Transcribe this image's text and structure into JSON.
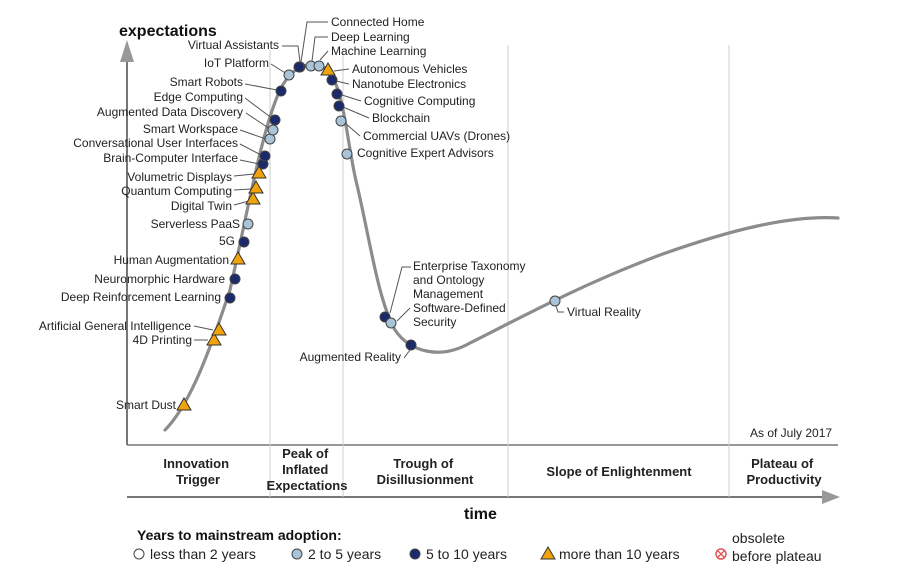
{
  "chart_data": {
    "type": "hype-cycle",
    "title": "",
    "ylabel": "expectations",
    "xlabel": "time",
    "note": "As of July 2017",
    "phases": [
      {
        "lines": [
          "Innovation",
          "Trigger"
        ]
      },
      {
        "lines": [
          "Peak of",
          "Inflated",
          "Expectations"
        ]
      },
      {
        "lines": [
          "Trough of",
          "Disillusionment"
        ]
      },
      {
        "lines": [
          "Slope of Enlightenment"
        ]
      },
      {
        "lines": [
          "Plateau of",
          "Productivity"
        ]
      }
    ],
    "legend": {
      "title": "Years to mainstream adoption:",
      "items": [
        {
          "key": "lt2",
          "label": "less than 2 years",
          "marker": "circle",
          "fill": "#ffffff"
        },
        {
          "key": "2to5",
          "label": "2 to 5 years",
          "marker": "circle",
          "fill": "#a9c4d8"
        },
        {
          "key": "5to10",
          "label": "5 to 10 years",
          "marker": "circle",
          "fill": "#1b2a6b"
        },
        {
          "key": "gt10",
          "label": "more than 10 years",
          "marker": "triangle",
          "fill": "#f0a30a"
        },
        {
          "key": "obs",
          "label_lines": [
            "obsolete",
            "before plateau"
          ],
          "marker": "x-circle",
          "fill": "#e05555"
        }
      ]
    },
    "technologies": [
      {
        "name": "Smart Dust",
        "category": "gt10"
      },
      {
        "name": "4D Printing",
        "category": "gt10"
      },
      {
        "name": "Artificial General Intelligence",
        "category": "gt10"
      },
      {
        "name": "Deep Reinforcement Learning",
        "category": "5to10"
      },
      {
        "name": "Neuromorphic Hardware",
        "category": "5to10"
      },
      {
        "name": "Human Augmentation",
        "category": "gt10"
      },
      {
        "name": "5G",
        "category": "5to10"
      },
      {
        "name": "Serverless PaaS",
        "category": "2to5"
      },
      {
        "name": "Digital Twin",
        "category": "gt10"
      },
      {
        "name": "Quantum Computing",
        "category": "gt10"
      },
      {
        "name": "Volumetric Displays",
        "category": "gt10"
      },
      {
        "name": "Brain-Computer Interface",
        "category": "5to10"
      },
      {
        "name": "Conversational User Interfaces",
        "category": "5to10"
      },
      {
        "name": "Smart Workspace",
        "category": "2to5"
      },
      {
        "name": "Augmented Data Discovery",
        "category": "2to5"
      },
      {
        "name": "Edge Computing",
        "category": "5to10"
      },
      {
        "name": "Smart Robots",
        "category": "5to10"
      },
      {
        "name": "IoT Platform",
        "category": "2to5"
      },
      {
        "name": "Virtual Assistants",
        "category": "5to10"
      },
      {
        "name": "Connected Home",
        "category": "5to10"
      },
      {
        "name": "Deep Learning",
        "category": "2to5"
      },
      {
        "name": "Machine Learning",
        "category": "2to5"
      },
      {
        "name": "Autonomous Vehicles",
        "category": "gt10"
      },
      {
        "name": "Nanotube Electronics",
        "category": "5to10"
      },
      {
        "name": "Cognitive Computing",
        "category": "5to10"
      },
      {
        "name": "Blockchain",
        "category": "5to10"
      },
      {
        "name": "Commercial UAVs (Drones)",
        "category": "2to5"
      },
      {
        "name": "Cognitive Expert Advisors",
        "category": "2to5"
      },
      {
        "name": "Enterprise Taxonomy and Ontology Management",
        "category": "5to10",
        "label_lines": [
          "Enterprise Taxonomy",
          "and Ontology",
          "Management"
        ]
      },
      {
        "name": "Software-Defined Security",
        "category": "2to5",
        "label_lines": [
          "Software-Defined",
          "Security"
        ]
      },
      {
        "name": "Augmented Reality",
        "category": "5to10"
      },
      {
        "name": "Virtual Reality",
        "category": "2to5"
      }
    ]
  }
}
